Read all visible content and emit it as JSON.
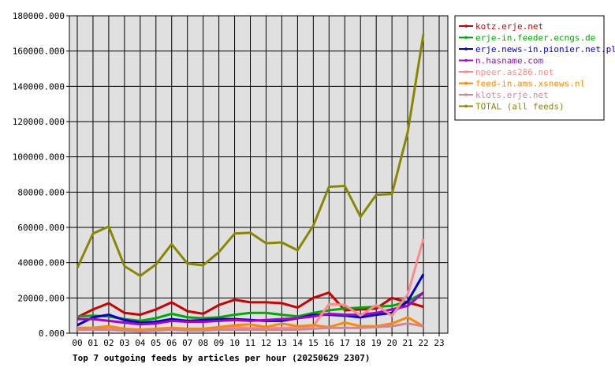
{
  "chart_data": {
    "type": "line",
    "title": "Top 7 outgoing feeds by articles per hour (20250629 2307)",
    "x_ticks": [
      "00",
      "01",
      "02",
      "03",
      "04",
      "05",
      "06",
      "07",
      "08",
      "09",
      "10",
      "11",
      "12",
      "13",
      "14",
      "15",
      "16",
      "17",
      "18",
      "19",
      "20",
      "21",
      "22",
      "23"
    ],
    "y_ticks": [
      "0.000",
      "20000.000",
      "40000.000",
      "60000.000",
      "80000.000",
      "100000.000",
      "120000.000",
      "140000.000",
      "160000.000",
      "180000.000"
    ],
    "ylim": [
      0,
      180000
    ],
    "xlim": [
      0,
      23
    ],
    "grid": true,
    "legend_position": "right",
    "series": [
      {
        "name": "kotz.erje.net",
        "color": "#cc0000",
        "values": [
          9000,
          13500,
          17000,
          11500,
          10500,
          13500,
          17500,
          12500,
          11000,
          16000,
          19000,
          17500,
          17500,
          17000,
          14500,
          20000,
          23000,
          13000,
          13500,
          14000,
          20000,
          17500,
          15000
        ]
      },
      {
        "name": "erje-in.feeder.ecngs.de",
        "color": "#00aa00",
        "values": [
          9500,
          10000,
          9500,
          8000,
          7000,
          8500,
          11000,
          9000,
          8500,
          9000,
          10500,
          11500,
          11500,
          10500,
          9500,
          11500,
          13000,
          14000,
          14500,
          15000,
          15500,
          18000,
          23000
        ]
      },
      {
        "name": "erje.news-in.pionier.net.pl",
        "color": "#0000cc",
        "values": [
          4500,
          9000,
          10500,
          7500,
          6000,
          6500,
          8000,
          7000,
          7500,
          8000,
          8000,
          7500,
          7000,
          7000,
          8500,
          10500,
          10500,
          10000,
          9000,
          10500,
          11500,
          18000,
          33500
        ]
      },
      {
        "name": "n.hasname.com",
        "color": "#aa00cc",
        "values": [
          8000,
          8000,
          7000,
          6000,
          5000,
          5500,
          7000,
          6500,
          6500,
          7000,
          7500,
          7000,
          7500,
          8000,
          8500,
          9500,
          11000,
          10500,
          10500,
          11500,
          13500,
          15500,
          23000
        ]
      },
      {
        "name": "npeer.as286.net",
        "color": "#ff8888",
        "values": [
          3000,
          3000,
          3000,
          2000,
          1500,
          2000,
          2500,
          2000,
          2000,
          3000,
          3500,
          3000,
          3000,
          3000,
          3000,
          4000,
          16500,
          16000,
          10000,
          16000,
          10000,
          22000,
          53500
        ]
      },
      {
        "name": "feed-in.ams.xsnews.nl",
        "color": "#ff8800",
        "values": [
          3000,
          3000,
          4000,
          2500,
          2000,
          2500,
          3000,
          2500,
          2500,
          3500,
          4500,
          5000,
          3500,
          5500,
          4000,
          4500,
          3500,
          6000,
          4000,
          4000,
          5500,
          9000,
          4000
        ]
      },
      {
        "name": "klots.erje.net",
        "color": "#cc8899",
        "values": [
          2000,
          2000,
          2000,
          1500,
          1000,
          1500,
          2000,
          1500,
          1500,
          2000,
          2000,
          2000,
          2000,
          2000,
          2000,
          2500,
          3000,
          3000,
          3000,
          3500,
          4000,
          5500,
          4000
        ]
      },
      {
        "name": "TOTAL (all feeds)",
        "color": "#888800",
        "values": [
          37000,
          56500,
          60500,
          38000,
          32500,
          39000,
          50500,
          39500,
          38500,
          46000,
          56500,
          57000,
          51000,
          51500,
          47000,
          61000,
          83000,
          83500,
          66000,
          78500,
          79000,
          114000,
          169500
        ]
      }
    ]
  }
}
